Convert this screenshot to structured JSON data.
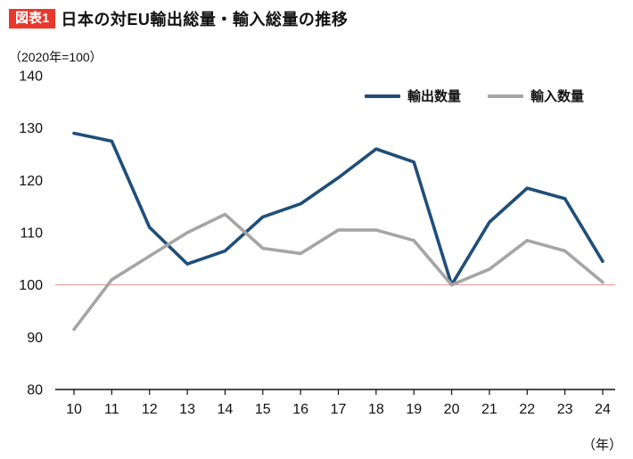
{
  "header": {
    "badge": "図表1",
    "badge_color": "#e8382d",
    "title": "日本の対EU輸出総量・輸入総量の推移",
    "subtitle": "（2020年=100）"
  },
  "chart_data": {
    "type": "line",
    "x": [
      "10",
      "11",
      "12",
      "13",
      "14",
      "15",
      "16",
      "17",
      "18",
      "19",
      "20",
      "21",
      "22",
      "23",
      "24"
    ],
    "x_unit_label": "（年）",
    "ylim": [
      80,
      140
    ],
    "yticks": [
      80,
      90,
      100,
      110,
      120,
      130,
      140
    ],
    "grid": false,
    "legend_position": "top-right",
    "reference_line": {
      "value": 100,
      "color": "#e0908e"
    },
    "axis_color": "#111111",
    "tick_label_color": "#111111",
    "series": [
      {
        "name": "輸出数量",
        "color": "#1f4e79",
        "values": [
          129,
          127.5,
          111,
          104,
          106.5,
          113,
          115.5,
          120.5,
          126,
          123.5,
          100,
          112,
          118.5,
          116.5,
          104.5
        ]
      },
      {
        "name": "輸入数量",
        "color": "#a5a5a5",
        "values": [
          91.5,
          101,
          105.5,
          110,
          113.5,
          107,
          106,
          110.5,
          110.5,
          108.5,
          100,
          103,
          108.5,
          106.5,
          100.5
        ]
      }
    ]
  }
}
